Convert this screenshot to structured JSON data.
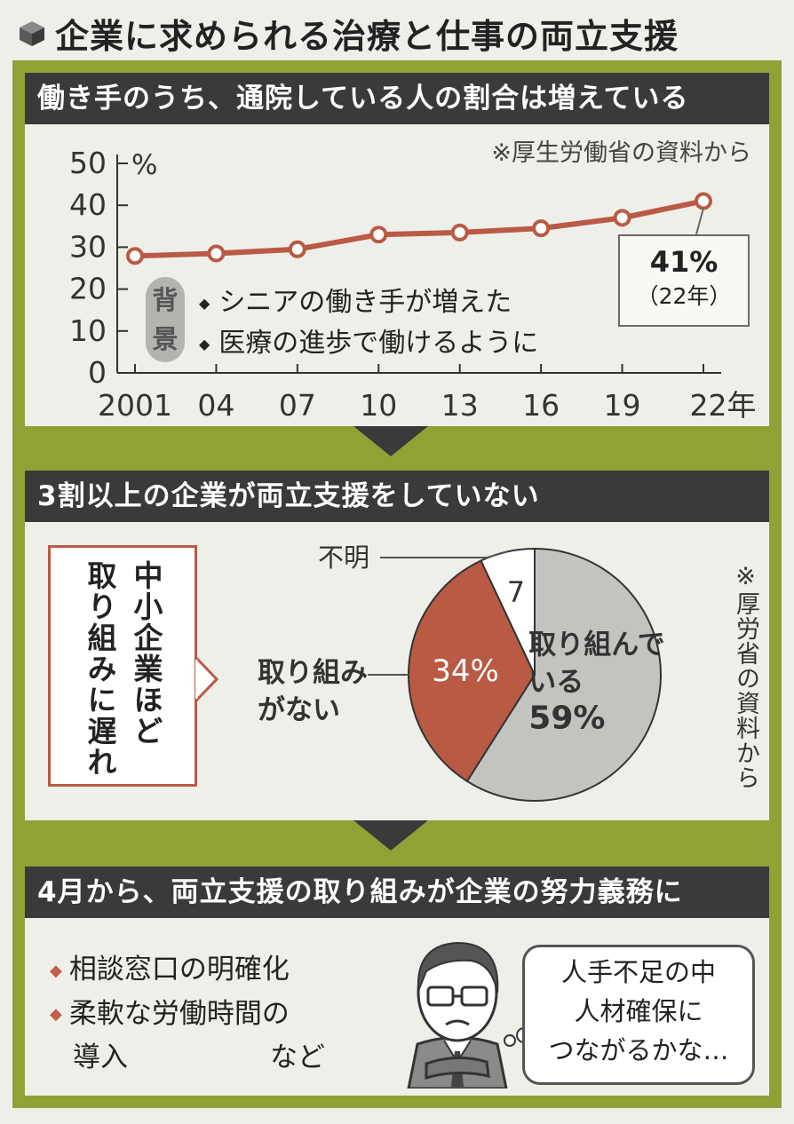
{
  "title": "企業に求められる治療と仕事の両立支援",
  "section1": {
    "heading": "働き手のうち、通院している人の割合は増えている",
    "source": "※厚生労働省の資料から",
    "callout_value": "41%",
    "callout_year": "（22年）",
    "background_label": [
      "背",
      "景"
    ],
    "bullets": [
      "シニアの働き手が増えた",
      "医療の進歩で働けるように"
    ]
  },
  "section2": {
    "heading": "3割以上の企業が両立支援をしていない",
    "note_lines": [
      "中小企業ほど",
      "取り組みに遅れ"
    ],
    "source_vertical": "※厚労省の資料から"
  },
  "section3": {
    "heading": "4月から、両立支援の取り組みが企業の努力義務に",
    "bullets": [
      "相談窓口の明確化",
      "柔軟な労働時間の",
      "導入",
      "など"
    ],
    "speech": [
      "人手不足の中",
      "人材確保に",
      "つながるかな…"
    ]
  },
  "chart_data": [
    {
      "type": "line",
      "ylabel": "%",
      "ylim": [
        0,
        50
      ],
      "yticks": [
        0,
        10,
        20,
        30,
        40,
        50
      ],
      "x": [
        "2001",
        "04",
        "07",
        "10",
        "13",
        "16",
        "19",
        "22年"
      ],
      "values": [
        27.9,
        28.5,
        29.5,
        33.0,
        33.5,
        34.5,
        37.0,
        41.0
      ],
      "grid": false,
      "color": "#b95a45"
    },
    {
      "type": "pie",
      "slices": [
        {
          "label": "取り組んでいる",
          "display": [
            "取り組んで",
            "いる"
          ],
          "value": 59,
          "value_label": "59%",
          "color": "#c3c3c0"
        },
        {
          "label": "取り組みがない",
          "display": [
            "取り組み",
            "がない"
          ],
          "value": 34,
          "value_label": "34%",
          "color": "#b95a45"
        },
        {
          "label": "不明",
          "display": [
            "不明"
          ],
          "value": 7,
          "value_label": "7",
          "color": "#ffffff"
        }
      ]
    }
  ]
}
